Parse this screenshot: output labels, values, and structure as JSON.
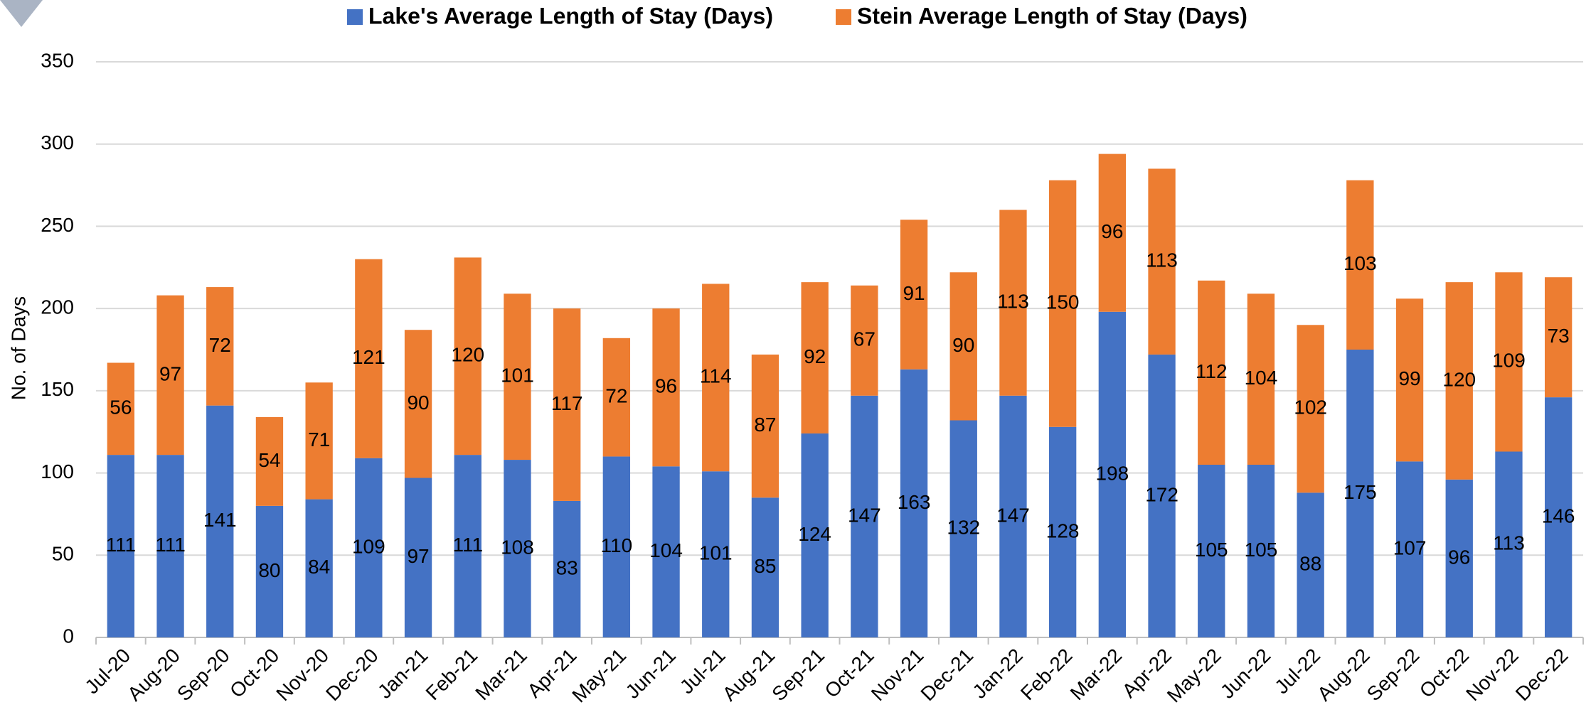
{
  "chart_data": {
    "type": "stacked_bar",
    "y_label": "No. of Days",
    "categories": [
      "Jul-20",
      "Aug-20",
      "Sep-20",
      "Oct-20",
      "Nov-20",
      "Dec-20",
      "Jan-21",
      "Feb-21",
      "Mar-21",
      "Apr-21",
      "May-21",
      "Jun-21",
      "Jul-21",
      "Aug-21",
      "Sep-21",
      "Oct-21",
      "Nov-21",
      "Dec-21",
      "Jan-22",
      "Feb-22",
      "Mar-22",
      "Apr-22",
      "May-22",
      "Jun-22",
      "Jul-22",
      "Aug-22",
      "Sep-22",
      "Oct-22",
      "Nov-22",
      "Dec-22"
    ],
    "series": [
      {
        "name": "Lake's Average Length of Stay (Days)",
        "color": "#4472c4",
        "values": [
          111,
          111,
          141,
          80,
          84,
          109,
          97,
          111,
          108,
          83,
          110,
          104,
          101,
          85,
          124,
          147,
          163,
          132,
          147,
          128,
          198,
          172,
          105,
          105,
          88,
          175,
          107,
          96,
          113,
          146
        ]
      },
      {
        "name": "Stein Average Length of Stay (Days)",
        "color": "#ed7d31",
        "values": [
          56,
          97,
          72,
          54,
          71,
          121,
          90,
          120,
          101,
          117,
          72,
          96,
          114,
          87,
          92,
          67,
          91,
          90,
          113,
          150,
          96,
          113,
          112,
          104,
          102,
          103,
          99,
          120,
          109,
          73
        ]
      }
    ],
    "ylim": [
      0,
      350
    ],
    "yticks": [
      0,
      50,
      100,
      150,
      200,
      250,
      300,
      350
    ],
    "grid": true
  }
}
